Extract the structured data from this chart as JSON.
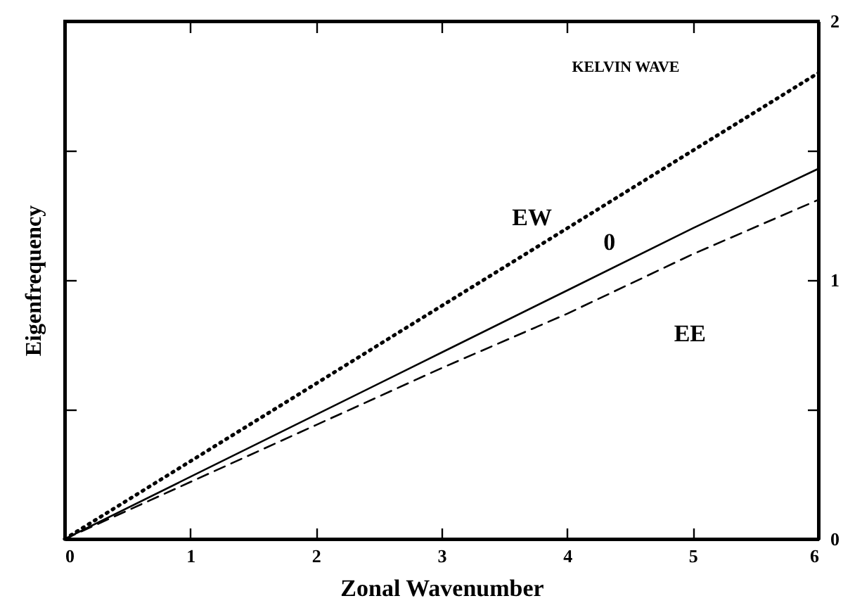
{
  "chart_data": {
    "type": "line",
    "title": "KELVIN WAVE",
    "xlabel": "Zonal Wavenumber",
    "ylabel": "Eigenfrequency",
    "x": [
      0,
      1,
      2,
      3,
      4,
      5,
      6
    ],
    "series": [
      {
        "name": "EW",
        "color": "#000000",
        "line_style": "dotted",
        "axis": "y2",
        "values": [
          0,
          0.3,
          0.6,
          0.9,
          1.2,
          1.5,
          1.8
        ]
      },
      {
        "name": "0",
        "color": "#000000",
        "line_style": "solid",
        "axis": "y2",
        "values": [
          0,
          0.24,
          0.48,
          0.72,
          0.96,
          1.2,
          1.43
        ]
      },
      {
        "name": "EE",
        "color": "#000000",
        "line_style": "dashed",
        "axis": "y2",
        "values": [
          0,
          0.22,
          0.44,
          0.66,
          0.87,
          1.1,
          1.31
        ]
      }
    ],
    "xlim": [
      0,
      6
    ],
    "xticks": [
      0,
      1,
      2,
      3,
      4,
      5,
      6
    ],
    "y2lim": [
      0,
      2
    ],
    "y2ticks": [
      0,
      {
        "value": 0.5,
        "label": null
      },
      1,
      {
        "value": 1.5,
        "label": null
      },
      2
    ],
    "grid": false,
    "legend": false,
    "marker": "none"
  }
}
